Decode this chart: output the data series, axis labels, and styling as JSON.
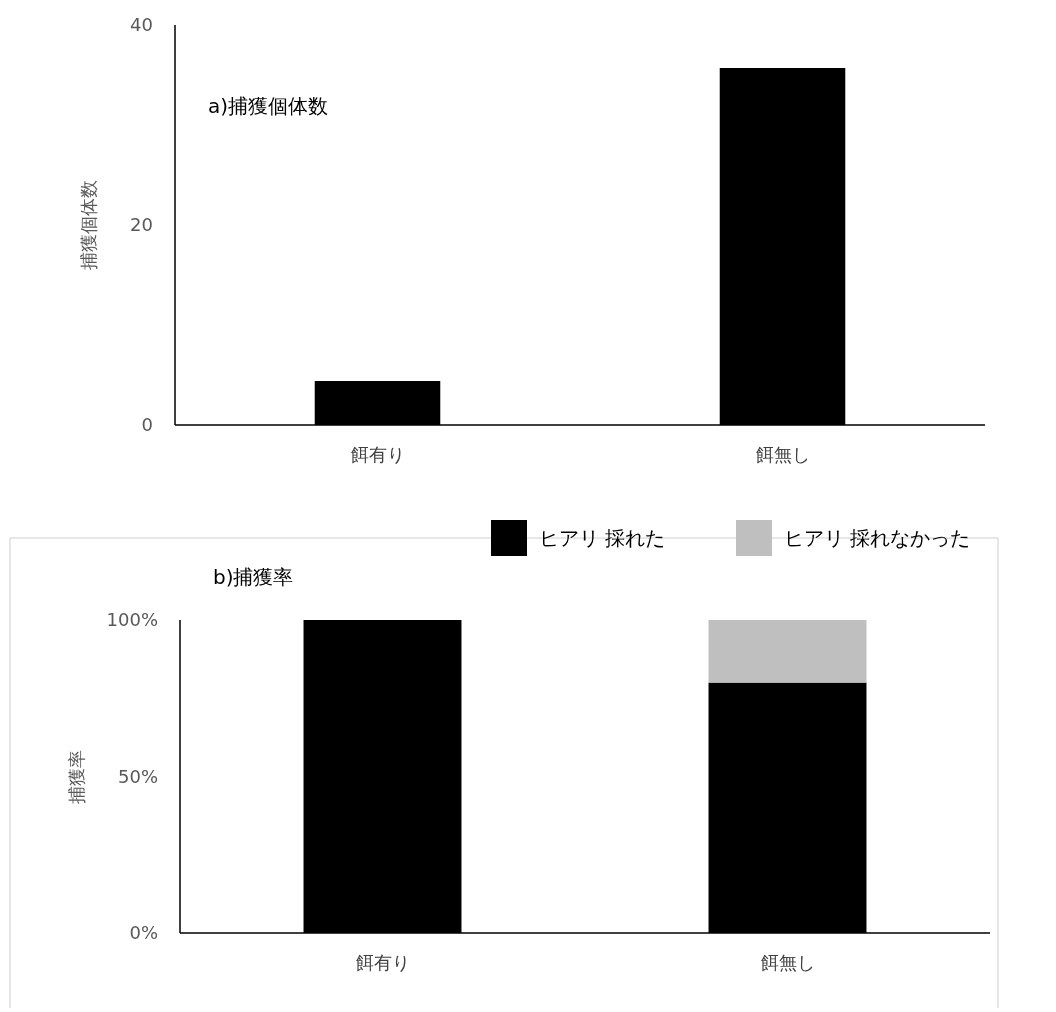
{
  "chart_data": [
    {
      "type": "bar",
      "title": "a)捕獲個体数",
      "ylabel": "捕獲個体数",
      "categories": [
        "餌有り",
        "餌無し"
      ],
      "values": [
        4.4,
        35.7
      ],
      "color": "#000000",
      "ylim": [
        0,
        40
      ],
      "yticks": [
        0,
        20,
        40
      ]
    },
    {
      "type": "bar",
      "title": "b)捕獲率",
      "ylabel": "捕獲率",
      "stacked": true,
      "legend": "top right",
      "categories": [
        "餌有り",
        "餌無し"
      ],
      "series": [
        {
          "name": "ヒアリ 採れた",
          "color": "#000000",
          "values": [
            100,
            80
          ]
        },
        {
          "name": "ヒアリ 採れなかった",
          "color": "#bfbfbf",
          "values": [
            0,
            20
          ]
        }
      ],
      "ylim": [
        0,
        100
      ],
      "yticks": [
        {
          "value": 0,
          "label": "0%"
        },
        {
          "value": 50,
          "label": "50%"
        },
        {
          "value": 100,
          "label": "100%"
        }
      ]
    }
  ]
}
